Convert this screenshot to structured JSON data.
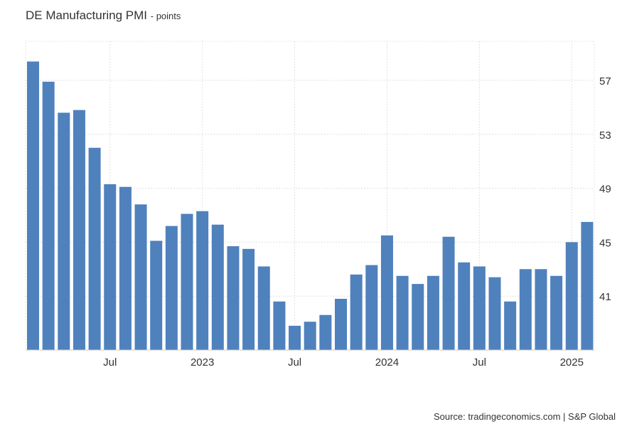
{
  "chart_data": {
    "type": "bar",
    "title": "DE Manufacturing PMI",
    "unit": "- points",
    "source": "Source: tradingeconomics.com | S&P Global",
    "categories": [
      "Feb 2022",
      "Mar 2022",
      "Apr 2022",
      "May 2022",
      "Jun 2022",
      "Jul 2022",
      "Aug 2022",
      "Sep 2022",
      "Oct 2022",
      "Nov 2022",
      "Dec 2022",
      "Jan 2023",
      "Feb 2023",
      "Mar 2023",
      "Apr 2023",
      "May 2023",
      "Jun 2023",
      "Jul 2023",
      "Aug 2023",
      "Sep 2023",
      "Oct 2023",
      "Nov 2023",
      "Dec 2023",
      "Jan 2024",
      "Feb 2024",
      "Mar 2024",
      "Apr 2024",
      "May 2024",
      "Jun 2024",
      "Jul 2024",
      "Aug 2024",
      "Sep 2024",
      "Oct 2024",
      "Nov 2024",
      "Dec 2024",
      "Jan 2025",
      "Feb 2025"
    ],
    "values": [
      58.4,
      56.9,
      54.6,
      54.8,
      52.0,
      49.3,
      49.1,
      47.8,
      45.1,
      46.2,
      47.1,
      47.3,
      46.3,
      44.7,
      44.5,
      43.2,
      40.6,
      38.8,
      39.1,
      39.6,
      40.8,
      42.6,
      43.3,
      45.5,
      42.5,
      41.9,
      42.5,
      45.4,
      43.5,
      43.2,
      42.4,
      40.6,
      43.0,
      43.0,
      42.5,
      45.0,
      46.5
    ],
    "x_ticks": [
      {
        "index": 5,
        "label": "Jul"
      },
      {
        "index": 11,
        "label": "2023"
      },
      {
        "index": 17,
        "label": "Jul"
      },
      {
        "index": 23,
        "label": "2024"
      },
      {
        "index": 29,
        "label": "Jul"
      },
      {
        "index": 35,
        "label": "2025"
      }
    ],
    "y_ticks": [
      41,
      45,
      49,
      53,
      57
    ],
    "ylim": [
      37,
      59.9
    ],
    "grid": true,
    "bar_color": "#4f81bd",
    "xlabel": "",
    "ylabel": ""
  }
}
